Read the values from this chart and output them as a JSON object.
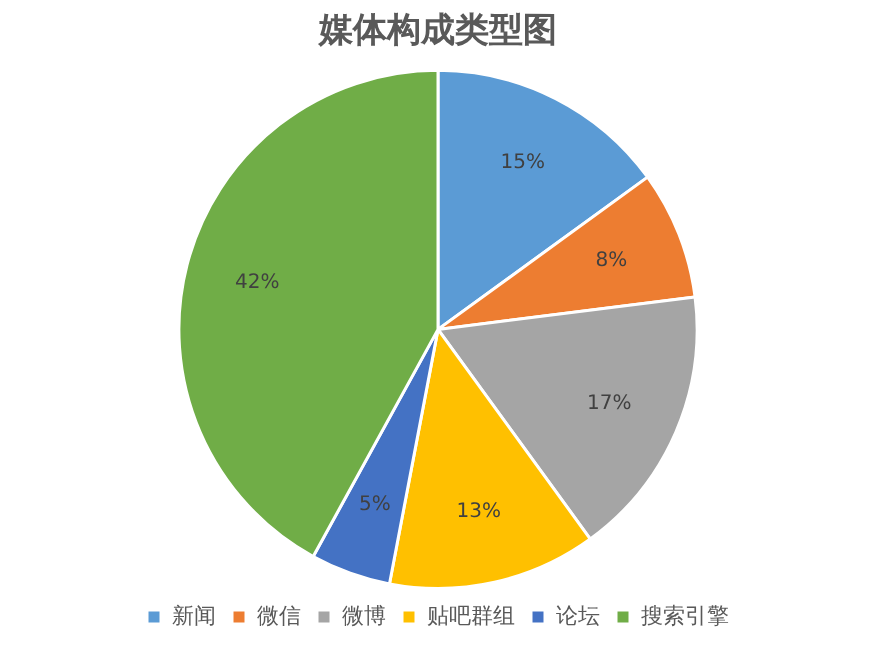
{
  "chart_data": {
    "type": "pie",
    "title": "媒体构成类型图",
    "categories": [
      "新闻",
      "微信",
      "微博",
      "贴吧群组",
      "论坛",
      "搜索引擎"
    ],
    "values": [
      15,
      8,
      17,
      13,
      5,
      42
    ],
    "colors": [
      "#5b9bd5",
      "#ed7d31",
      "#a5a5a5",
      "#ffc000",
      "#4472c4",
      "#70ad47"
    ],
    "value_labels": [
      "15%",
      "8%",
      "17%",
      "13%",
      "5%",
      "42%"
    ],
    "legend": "bottom"
  }
}
